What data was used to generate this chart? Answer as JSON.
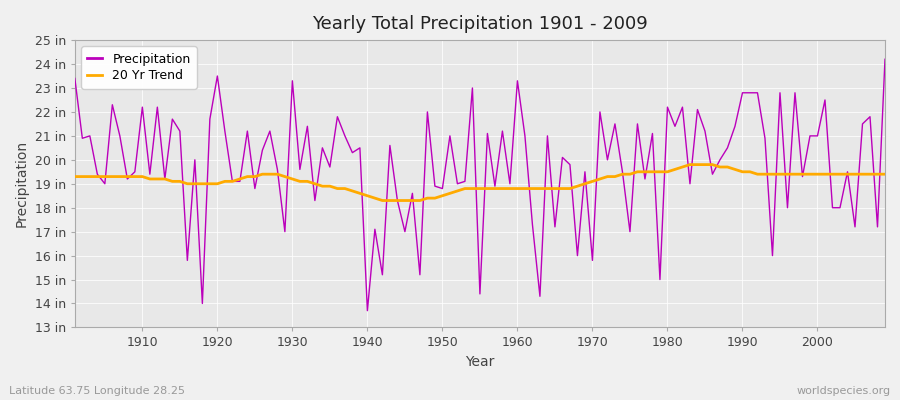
{
  "title": "Yearly Total Precipitation 1901 - 2009",
  "xlabel": "Year",
  "ylabel": "Precipitation",
  "subtitle": "Latitude 63.75 Longitude 28.25",
  "watermark": "worldspecies.org",
  "precip_color": "#bb00bb",
  "trend_color": "#ffaa00",
  "background_color": "#f0f0f0",
  "plot_bg_color": "#e8e8e8",
  "grid_color": "#ffffff",
  "ylim": [
    13,
    25
  ],
  "xlim": [
    1901,
    2009
  ],
  "yticks": [
    13,
    14,
    15,
    16,
    17,
    18,
    19,
    20,
    21,
    22,
    23,
    24,
    25
  ],
  "xticks": [
    1910,
    1920,
    1930,
    1940,
    1950,
    1960,
    1970,
    1980,
    1990,
    2000
  ],
  "years": [
    1901,
    1902,
    1903,
    1904,
    1905,
    1906,
    1907,
    1908,
    1909,
    1910,
    1911,
    1912,
    1913,
    1914,
    1915,
    1916,
    1917,
    1918,
    1919,
    1920,
    1921,
    1922,
    1923,
    1924,
    1925,
    1926,
    1927,
    1928,
    1929,
    1930,
    1931,
    1932,
    1933,
    1934,
    1935,
    1936,
    1937,
    1938,
    1939,
    1940,
    1941,
    1942,
    1943,
    1944,
    1945,
    1946,
    1947,
    1948,
    1949,
    1950,
    1951,
    1952,
    1953,
    1954,
    1955,
    1956,
    1957,
    1958,
    1959,
    1960,
    1961,
    1962,
    1963,
    1964,
    1965,
    1966,
    1967,
    1968,
    1969,
    1970,
    1971,
    1972,
    1973,
    1974,
    1975,
    1976,
    1977,
    1978,
    1979,
    1980,
    1981,
    1982,
    1983,
    1984,
    1985,
    1986,
    1987,
    1988,
    1989,
    1990,
    1991,
    1992,
    1993,
    1994,
    1995,
    1996,
    1997,
    1998,
    1999,
    2000,
    2001,
    2002,
    2003,
    2004,
    2005,
    2006,
    2007,
    2008,
    2009
  ],
  "precip": [
    23.4,
    20.9,
    21.0,
    19.4,
    19.0,
    22.3,
    21.0,
    19.2,
    19.5,
    22.2,
    19.4,
    22.2,
    19.2,
    21.7,
    21.2,
    15.8,
    20.0,
    14.0,
    21.7,
    23.5,
    21.2,
    19.1,
    19.1,
    21.2,
    18.8,
    20.4,
    21.2,
    19.6,
    17.0,
    23.3,
    19.6,
    21.4,
    18.3,
    20.5,
    19.7,
    21.8,
    21.0,
    20.3,
    20.5,
    13.7,
    17.1,
    15.2,
    20.6,
    18.3,
    17.0,
    18.6,
    15.2,
    22.0,
    18.9,
    18.8,
    21.0,
    19.0,
    19.1,
    23.0,
    14.4,
    21.1,
    18.9,
    21.2,
    19.0,
    23.3,
    21.0,
    17.3,
    14.3,
    21.0,
    17.2,
    20.1,
    19.8,
    16.0,
    19.5,
    15.8,
    22.0,
    20.0,
    21.5,
    19.5,
    17.0,
    21.5,
    19.2,
    21.1,
    15.0,
    22.2,
    21.4,
    22.2,
    19.0,
    22.1,
    21.2,
    19.4,
    20.0,
    20.5,
    21.4,
    22.8,
    22.8,
    22.8,
    20.9,
    16.0,
    22.8,
    18.0,
    22.8,
    19.3,
    21.0,
    21.0,
    22.5,
    18.0,
    18.0,
    19.5,
    17.2,
    21.5,
    21.8,
    17.2,
    24.2
  ],
  "trend": [
    19.3,
    19.3,
    19.3,
    19.3,
    19.3,
    19.3,
    19.3,
    19.3,
    19.3,
    19.3,
    19.2,
    19.2,
    19.2,
    19.1,
    19.1,
    19.0,
    19.0,
    19.0,
    19.0,
    19.0,
    19.1,
    19.1,
    19.2,
    19.3,
    19.3,
    19.4,
    19.4,
    19.4,
    19.3,
    19.2,
    19.1,
    19.1,
    19.0,
    18.9,
    18.9,
    18.8,
    18.8,
    18.7,
    18.6,
    18.5,
    18.4,
    18.3,
    18.3,
    18.3,
    18.3,
    18.3,
    18.3,
    18.4,
    18.4,
    18.5,
    18.6,
    18.7,
    18.8,
    18.8,
    18.8,
    18.8,
    18.8,
    18.8,
    18.8,
    18.8,
    18.8,
    18.8,
    18.8,
    18.8,
    18.8,
    18.8,
    18.8,
    18.9,
    19.0,
    19.1,
    19.2,
    19.3,
    19.3,
    19.4,
    19.4,
    19.5,
    19.5,
    19.5,
    19.5,
    19.5,
    19.6,
    19.7,
    19.8,
    19.8,
    19.8,
    19.8,
    19.7,
    19.7,
    19.6,
    19.5,
    19.5,
    19.4,
    19.4,
    19.4,
    19.4,
    19.4,
    19.4,
    19.4,
    19.4,
    19.4,
    19.4,
    19.4,
    19.4,
    19.4,
    19.4,
    19.4,
    19.4,
    19.4,
    19.4
  ]
}
